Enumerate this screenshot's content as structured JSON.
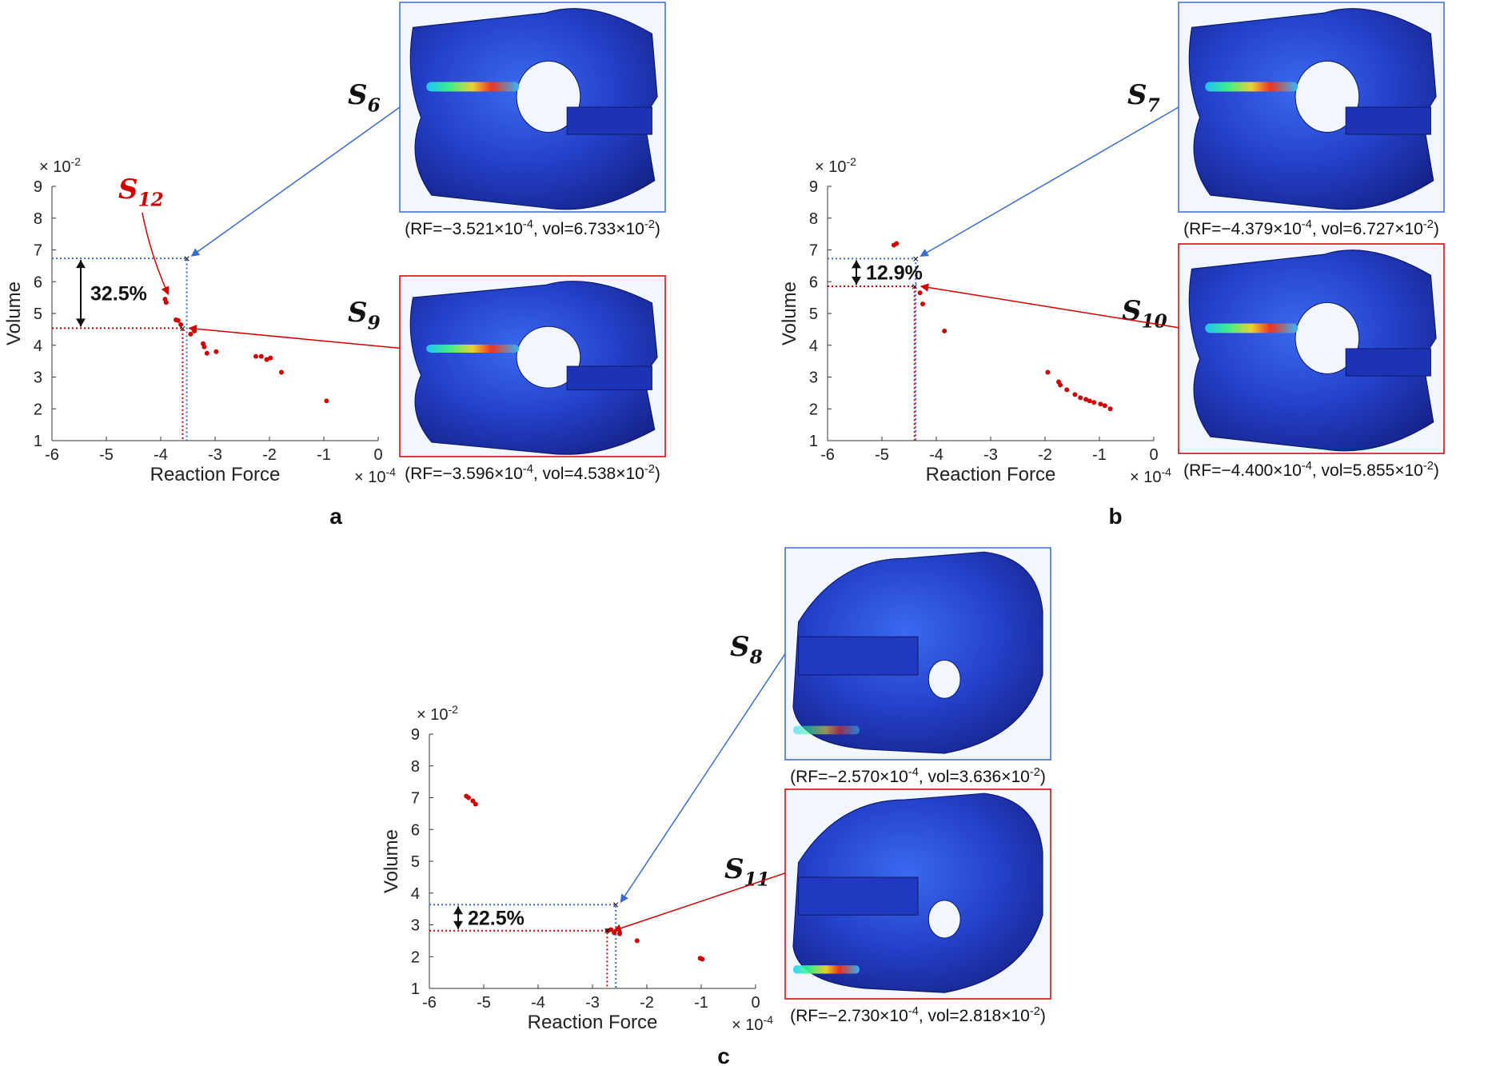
{
  "colors": {
    "optimal": "#d00000",
    "reference": "#3a6ccb",
    "mesh_dark": "#1b2fa8",
    "mesh_mid": "#2a4fe0"
  },
  "chart_data": [
    {
      "type": "scatter",
      "panel": "a",
      "xlabel": "Reaction Force",
      "ylabel": "Volume",
      "xlim": [
        -6,
        0
      ],
      "ylim": [
        1,
        9
      ],
      "x_ticks": [
        "-6",
        "-5",
        "-4",
        "-3",
        "-2",
        "-1",
        "0"
      ],
      "y_ticks": [
        "1",
        "2",
        "3",
        "4",
        "5",
        "6",
        "7",
        "8",
        "9"
      ],
      "x_exponent": "× 10^-4",
      "y_exponent": "× 10^-2",
      "points": [
        {
          "x": -3.92,
          "y": 5.45
        },
        {
          "x": -3.9,
          "y": 5.35
        },
        {
          "x": -3.72,
          "y": 4.8
        },
        {
          "x": -3.68,
          "y": 4.78
        },
        {
          "x": -3.63,
          "y": 4.65
        },
        {
          "x": -3.45,
          "y": 4.35
        },
        {
          "x": -3.38,
          "y": 4.45
        },
        {
          "x": -3.22,
          "y": 4.05
        },
        {
          "x": -3.2,
          "y": 3.95
        },
        {
          "x": -3.15,
          "y": 3.75
        },
        {
          "x": -2.98,
          "y": 3.8
        },
        {
          "x": -2.25,
          "y": 3.65
        },
        {
          "x": -2.15,
          "y": 3.65
        },
        {
          "x": -2.05,
          "y": 3.55
        },
        {
          "x": -1.98,
          "y": 3.6
        },
        {
          "x": -1.78,
          "y": 3.15
        },
        {
          "x": -0.95,
          "y": 2.25
        }
      ],
      "highlight_ref": {
        "label": "S",
        "sub": "6",
        "x": -3.521,
        "y": 6.733
      },
      "highlight_opt": {
        "label": "S",
        "sub": "9",
        "x": -3.596,
        "y": 4.538
      },
      "extra_label": {
        "label": "S",
        "sub": "12"
      },
      "reduction": "32.5%",
      "ref_caption": "(RF=−3.521×10^-4, vol=6.733×10^-2)",
      "opt_caption": "(RF=−3.596×10^-4, vol=4.538×10^-2)"
    },
    {
      "type": "scatter",
      "panel": "b",
      "xlabel": "Reaction Force",
      "ylabel": "Volume",
      "xlim": [
        -6,
        0
      ],
      "ylim": [
        1,
        9
      ],
      "x_ticks": [
        "-6",
        "-5",
        "-4",
        "-3",
        "-2",
        "-1",
        "0"
      ],
      "y_ticks": [
        "1",
        "2",
        "3",
        "4",
        "5",
        "6",
        "7",
        "8",
        "9"
      ],
      "x_exponent": "× 10^-4",
      "y_exponent": "× 10^-2",
      "points": [
        {
          "x": -4.78,
          "y": 7.15
        },
        {
          "x": -4.73,
          "y": 7.2
        },
        {
          "x": -4.3,
          "y": 5.65
        },
        {
          "x": -4.25,
          "y": 5.3
        },
        {
          "x": -3.85,
          "y": 4.45
        },
        {
          "x": -1.95,
          "y": 3.15
        },
        {
          "x": -1.75,
          "y": 2.85
        },
        {
          "x": -1.72,
          "y": 2.75
        },
        {
          "x": -1.6,
          "y": 2.6
        },
        {
          "x": -1.45,
          "y": 2.45
        },
        {
          "x": -1.35,
          "y": 2.35
        },
        {
          "x": -1.25,
          "y": 2.3
        },
        {
          "x": -1.18,
          "y": 2.25
        },
        {
          "x": -1.1,
          "y": 2.2
        },
        {
          "x": -0.98,
          "y": 2.15
        },
        {
          "x": -0.9,
          "y": 2.1
        },
        {
          "x": -0.8,
          "y": 2.0
        }
      ],
      "highlight_ref": {
        "label": "S",
        "sub": "7",
        "x": -4.379,
        "y": 6.727
      },
      "highlight_opt": {
        "label": "S",
        "sub": "10",
        "x": -4.4,
        "y": 5.855
      },
      "reduction": "12.9%",
      "ref_caption": "(RF=−4.379×10^-4, vol=6.727×10^-2)",
      "opt_caption": "(RF=−4.400×10^-4, vol=5.855×10^-2)"
    },
    {
      "type": "scatter",
      "panel": "c",
      "xlabel": "Reaction Force",
      "ylabel": "Volume",
      "xlim": [
        -6,
        0
      ],
      "ylim": [
        1,
        9
      ],
      "x_ticks": [
        "-6",
        "-5",
        "-4",
        "-3",
        "-2",
        "-1",
        "0"
      ],
      "y_ticks": [
        "1",
        "2",
        "3",
        "4",
        "5",
        "6",
        "7",
        "8",
        "9"
      ],
      "x_exponent": "× 10^-4",
      "y_exponent": "× 10^-2",
      "points": [
        {
          "x": -5.32,
          "y": 7.05
        },
        {
          "x": -5.28,
          "y": 7.0
        },
        {
          "x": -5.2,
          "y": 6.9
        },
        {
          "x": -5.15,
          "y": 6.8
        },
        {
          "x": -2.72,
          "y": 2.82
        },
        {
          "x": -2.66,
          "y": 2.85
        },
        {
          "x": -2.6,
          "y": 2.75
        },
        {
          "x": -2.5,
          "y": 2.72
        },
        {
          "x": -2.18,
          "y": 2.5
        },
        {
          "x": -1.02,
          "y": 1.95
        },
        {
          "x": -0.98,
          "y": 1.92
        }
      ],
      "highlight_ref": {
        "label": "S",
        "sub": "8",
        "x": -2.57,
        "y": 3.636
      },
      "highlight_opt": {
        "label": "S",
        "sub": "11",
        "x": -2.73,
        "y": 2.818
      },
      "reduction": "22.5%",
      "ref_caption": "(RF=−2.570×10^-4, vol=3.636×10^-2)",
      "opt_caption": "(RF=−2.730×10^-4, vol=2.818×10^-2)"
    }
  ]
}
